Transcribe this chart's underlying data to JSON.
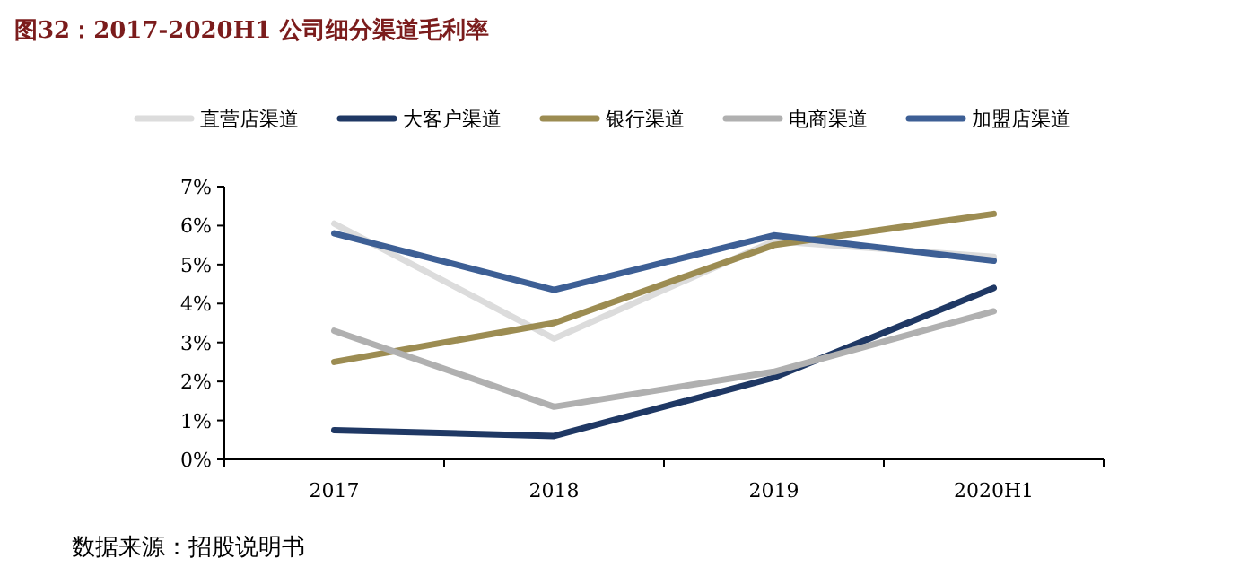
{
  "chart_data": {
    "type": "line",
    "title": "图32：2017-2020H1 公司细分渠道毛利率",
    "categories": [
      "2017",
      "2018",
      "2019",
      "2020H1"
    ],
    "series": [
      {
        "name": "直营店渠道",
        "color": "#dcdcdc",
        "values": [
          6.05,
          3.1,
          5.6,
          5.2
        ]
      },
      {
        "name": "大客户渠道",
        "color": "#1f3864",
        "values": [
          0.75,
          0.6,
          2.1,
          4.4
        ]
      },
      {
        "name": "银行渠道",
        "color": "#9c8c52",
        "values": [
          2.5,
          3.5,
          5.5,
          6.3
        ]
      },
      {
        "name": "电商渠道",
        "color": "#b0b0b0",
        "values": [
          3.3,
          1.35,
          2.25,
          3.8
        ]
      },
      {
        "name": "加盟店渠道",
        "color": "#3d5f95",
        "values": [
          5.8,
          4.35,
          5.75,
          5.1
        ]
      }
    ],
    "ylim": [
      0,
      7
    ],
    "yticks": [
      {
        "value": 0,
        "label": "0%"
      },
      {
        "value": 1,
        "label": "1%"
      },
      {
        "value": 2,
        "label": "2%"
      },
      {
        "value": 3,
        "label": "3%"
      },
      {
        "value": 4,
        "label": "4%"
      },
      {
        "value": 5,
        "label": "5%"
      },
      {
        "value": 6,
        "label": "6%"
      },
      {
        "value": 7,
        "label": "7%"
      }
    ],
    "legend": "top",
    "annotations": [
      "数据来源：招股说明书"
    ]
  }
}
